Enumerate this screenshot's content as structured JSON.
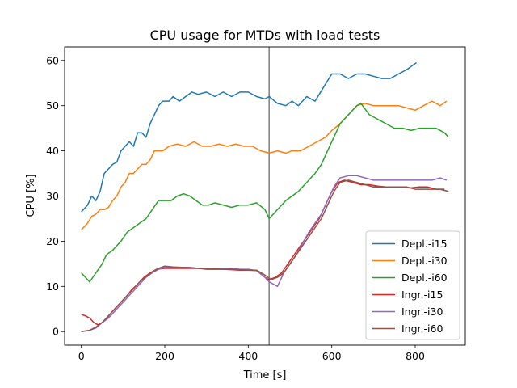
{
  "chart_data": {
    "type": "line",
    "title": "CPU usage for MTDs with load tests",
    "xlabel": "Time [s]",
    "ylabel": "CPU [%]",
    "xlim": [
      -40,
      920
    ],
    "ylim": [
      -3,
      63
    ],
    "xticks": [
      0,
      200,
      400,
      600,
      800
    ],
    "yticks": [
      0,
      10,
      20,
      30,
      40,
      50,
      60
    ],
    "vline": 450,
    "legend_position": "lower right",
    "series": [
      {
        "name": "Depl.-i15",
        "color": "#1f77b4",
        "points": [
          [
            0,
            26.5
          ],
          [
            15,
            28
          ],
          [
            25,
            30
          ],
          [
            35,
            29
          ],
          [
            45,
            31
          ],
          [
            55,
            35
          ],
          [
            65,
            36
          ],
          [
            75,
            37
          ],
          [
            85,
            37.5
          ],
          [
            95,
            40
          ],
          [
            105,
            41
          ],
          [
            115,
            42
          ],
          [
            125,
            41
          ],
          [
            135,
            44
          ],
          [
            145,
            44
          ],
          [
            155,
            43
          ],
          [
            165,
            46
          ],
          [
            175,
            48
          ],
          [
            185,
            50
          ],
          [
            195,
            51
          ],
          [
            210,
            51
          ],
          [
            220,
            52
          ],
          [
            235,
            51
          ],
          [
            250,
            52
          ],
          [
            265,
            53
          ],
          [
            280,
            52.5
          ],
          [
            300,
            53
          ],
          [
            320,
            52
          ],
          [
            340,
            53
          ],
          [
            360,
            52
          ],
          [
            380,
            53
          ],
          [
            400,
            53
          ],
          [
            420,
            52
          ],
          [
            440,
            51.5
          ],
          [
            450,
            52
          ],
          [
            470,
            50.5
          ],
          [
            490,
            50
          ],
          [
            505,
            51
          ],
          [
            520,
            50
          ],
          [
            540,
            52
          ],
          [
            560,
            51
          ],
          [
            580,
            54
          ],
          [
            600,
            57
          ],
          [
            620,
            57
          ],
          [
            640,
            56
          ],
          [
            660,
            57
          ],
          [
            680,
            57
          ],
          [
            700,
            56.5
          ],
          [
            720,
            56
          ],
          [
            740,
            56
          ],
          [
            760,
            57
          ],
          [
            780,
            58
          ],
          [
            795,
            59
          ],
          [
            803,
            59.5
          ]
        ]
      },
      {
        "name": "Depl.-i30",
        "color": "#ff7f0e",
        "points": [
          [
            0,
            22.5
          ],
          [
            15,
            24
          ],
          [
            25,
            25.5
          ],
          [
            35,
            26
          ],
          [
            45,
            27
          ],
          [
            55,
            27
          ],
          [
            65,
            27.5
          ],
          [
            75,
            29
          ],
          [
            85,
            30
          ],
          [
            95,
            32
          ],
          [
            105,
            33
          ],
          [
            115,
            35
          ],
          [
            125,
            35
          ],
          [
            135,
            36
          ],
          [
            145,
            37
          ],
          [
            155,
            37
          ],
          [
            165,
            38
          ],
          [
            175,
            40
          ],
          [
            185,
            40
          ],
          [
            195,
            40
          ],
          [
            210,
            41
          ],
          [
            230,
            41.5
          ],
          [
            250,
            41
          ],
          [
            270,
            42
          ],
          [
            290,
            41
          ],
          [
            310,
            41
          ],
          [
            330,
            41.5
          ],
          [
            350,
            41
          ],
          [
            370,
            41.5
          ],
          [
            390,
            41
          ],
          [
            410,
            41
          ],
          [
            430,
            40
          ],
          [
            450,
            39.5
          ],
          [
            470,
            40
          ],
          [
            490,
            39.5
          ],
          [
            505,
            40
          ],
          [
            525,
            40
          ],
          [
            545,
            41
          ],
          [
            565,
            42
          ],
          [
            585,
            43
          ],
          [
            600,
            44.5
          ],
          [
            620,
            46
          ],
          [
            640,
            48
          ],
          [
            660,
            50
          ],
          [
            680,
            50.5
          ],
          [
            700,
            50
          ],
          [
            720,
            50
          ],
          [
            740,
            50
          ],
          [
            760,
            50
          ],
          [
            780,
            49.5
          ],
          [
            800,
            49
          ],
          [
            820,
            50
          ],
          [
            840,
            51
          ],
          [
            860,
            50
          ],
          [
            875,
            51
          ]
        ]
      },
      {
        "name": "Depl.-i60",
        "color": "#2ca02c",
        "points": [
          [
            0,
            13
          ],
          [
            10,
            12
          ],
          [
            20,
            11
          ],
          [
            35,
            13
          ],
          [
            50,
            15
          ],
          [
            60,
            17
          ],
          [
            75,
            18
          ],
          [
            85,
            19
          ],
          [
            95,
            20
          ],
          [
            110,
            22
          ],
          [
            125,
            23
          ],
          [
            140,
            24
          ],
          [
            155,
            25
          ],
          [
            170,
            27
          ],
          [
            185,
            29
          ],
          [
            200,
            29
          ],
          [
            215,
            29
          ],
          [
            230,
            30
          ],
          [
            245,
            30.5
          ],
          [
            260,
            30
          ],
          [
            275,
            29
          ],
          [
            290,
            28
          ],
          [
            305,
            28
          ],
          [
            320,
            28.5
          ],
          [
            340,
            28
          ],
          [
            360,
            27.5
          ],
          [
            380,
            28
          ],
          [
            400,
            28
          ],
          [
            420,
            28.5
          ],
          [
            440,
            27
          ],
          [
            450,
            25
          ],
          [
            470,
            27
          ],
          [
            490,
            29
          ],
          [
            505,
            30
          ],
          [
            520,
            31
          ],
          [
            540,
            33
          ],
          [
            560,
            35
          ],
          [
            575,
            37
          ],
          [
            590,
            40
          ],
          [
            605,
            43
          ],
          [
            620,
            46
          ],
          [
            640,
            48
          ],
          [
            660,
            50
          ],
          [
            670,
            50.5
          ],
          [
            690,
            48
          ],
          [
            710,
            47
          ],
          [
            730,
            46
          ],
          [
            750,
            45
          ],
          [
            770,
            45
          ],
          [
            790,
            44.5
          ],
          [
            810,
            45
          ],
          [
            830,
            45
          ],
          [
            850,
            45
          ],
          [
            870,
            44
          ],
          [
            880,
            43
          ]
        ]
      },
      {
        "name": "Ingr.-i15",
        "color": "#d62728",
        "points": [
          [
            0,
            3.8
          ],
          [
            10,
            3.5
          ],
          [
            20,
            3
          ],
          [
            30,
            2
          ],
          [
            40,
            1.5
          ],
          [
            50,
            2
          ],
          [
            60,
            2.8
          ],
          [
            70,
            4
          ],
          [
            80,
            5
          ],
          [
            90,
            6
          ],
          [
            100,
            7
          ],
          [
            110,
            8
          ],
          [
            120,
            9.2
          ],
          [
            135,
            10.5
          ],
          [
            150,
            12
          ],
          [
            165,
            13
          ],
          [
            180,
            13.8
          ],
          [
            200,
            14
          ],
          [
            220,
            14
          ],
          [
            240,
            14
          ],
          [
            260,
            14
          ],
          [
            280,
            14
          ],
          [
            300,
            13.8
          ],
          [
            320,
            13.8
          ],
          [
            340,
            13.8
          ],
          [
            360,
            13.7
          ],
          [
            380,
            13.6
          ],
          [
            400,
            13.6
          ],
          [
            420,
            13.5
          ],
          [
            440,
            12
          ],
          [
            450,
            11.5
          ],
          [
            465,
            12
          ],
          [
            480,
            13
          ],
          [
            495,
            15
          ],
          [
            510,
            17
          ],
          [
            525,
            19
          ],
          [
            540,
            21
          ],
          [
            555,
            23
          ],
          [
            570,
            25
          ],
          [
            585,
            28
          ],
          [
            600,
            31
          ],
          [
            615,
            33
          ],
          [
            630,
            33.5
          ],
          [
            650,
            33
          ],
          [
            670,
            32.5
          ],
          [
            690,
            32.5
          ],
          [
            710,
            32.2
          ],
          [
            730,
            32
          ],
          [
            750,
            32
          ],
          [
            770,
            32
          ],
          [
            790,
            31.8
          ],
          [
            810,
            32
          ],
          [
            830,
            32
          ],
          [
            850,
            31.5
          ],
          [
            870,
            31.5
          ]
        ]
      },
      {
        "name": "Ingr.-i30",
        "color": "#9467bd",
        "points": [
          [
            0,
            0
          ],
          [
            20,
            0.3
          ],
          [
            35,
            0.8
          ],
          [
            50,
            2
          ],
          [
            65,
            3
          ],
          [
            80,
            4.5
          ],
          [
            95,
            6
          ],
          [
            110,
            7.5
          ],
          [
            125,
            9
          ],
          [
            140,
            10.5
          ],
          [
            155,
            12
          ],
          [
            170,
            13
          ],
          [
            185,
            13.8
          ],
          [
            200,
            14.2
          ],
          [
            220,
            14.2
          ],
          [
            240,
            14.2
          ],
          [
            260,
            14.2
          ],
          [
            280,
            14
          ],
          [
            300,
            14
          ],
          [
            320,
            14
          ],
          [
            340,
            14
          ],
          [
            360,
            14
          ],
          [
            380,
            13.8
          ],
          [
            400,
            13.8
          ],
          [
            420,
            13.5
          ],
          [
            440,
            12
          ],
          [
            450,
            11
          ],
          [
            470,
            10
          ],
          [
            485,
            13
          ],
          [
            500,
            15
          ],
          [
            515,
            17
          ],
          [
            530,
            19.5
          ],
          [
            545,
            22
          ],
          [
            560,
            24
          ],
          [
            575,
            26
          ],
          [
            590,
            29
          ],
          [
            605,
            32
          ],
          [
            620,
            34
          ],
          [
            640,
            34.5
          ],
          [
            660,
            34.5
          ],
          [
            680,
            34
          ],
          [
            700,
            33.5
          ],
          [
            720,
            33.5
          ],
          [
            740,
            33.5
          ],
          [
            760,
            33.5
          ],
          [
            780,
            33.5
          ],
          [
            800,
            33.5
          ],
          [
            820,
            33.5
          ],
          [
            840,
            33.5
          ],
          [
            860,
            34
          ],
          [
            875,
            33.5
          ]
        ]
      },
      {
        "name": "Ingr.-i60",
        "color": "#8c564b",
        "points": [
          [
            0,
            0
          ],
          [
            20,
            0.3
          ],
          [
            35,
            1
          ],
          [
            50,
            2
          ],
          [
            65,
            3.5
          ],
          [
            80,
            5
          ],
          [
            95,
            6.5
          ],
          [
            110,
            8
          ],
          [
            125,
            9.5
          ],
          [
            140,
            11
          ],
          [
            155,
            12.2
          ],
          [
            170,
            13.2
          ],
          [
            185,
            14
          ],
          [
            200,
            14.5
          ],
          [
            220,
            14.3
          ],
          [
            240,
            14.2
          ],
          [
            260,
            14.1
          ],
          [
            280,
            14
          ],
          [
            300,
            14
          ],
          [
            320,
            13.9
          ],
          [
            340,
            13.8
          ],
          [
            360,
            13.8
          ],
          [
            380,
            13.7
          ],
          [
            400,
            13.6
          ],
          [
            420,
            13.6
          ],
          [
            440,
            12.5
          ],
          [
            455,
            11.5
          ],
          [
            470,
            12
          ],
          [
            485,
            13
          ],
          [
            500,
            15
          ],
          [
            515,
            17
          ],
          [
            530,
            19
          ],
          [
            545,
            21
          ],
          [
            560,
            23
          ],
          [
            575,
            25
          ],
          [
            590,
            28
          ],
          [
            605,
            31
          ],
          [
            620,
            33
          ],
          [
            640,
            33.5
          ],
          [
            660,
            33
          ],
          [
            680,
            32.5
          ],
          [
            700,
            32
          ],
          [
            720,
            32
          ],
          [
            740,
            32
          ],
          [
            760,
            32
          ],
          [
            780,
            32
          ],
          [
            800,
            31.5
          ],
          [
            820,
            31.5
          ],
          [
            840,
            31.5
          ],
          [
            860,
            31.5
          ],
          [
            880,
            31
          ]
        ]
      }
    ]
  }
}
